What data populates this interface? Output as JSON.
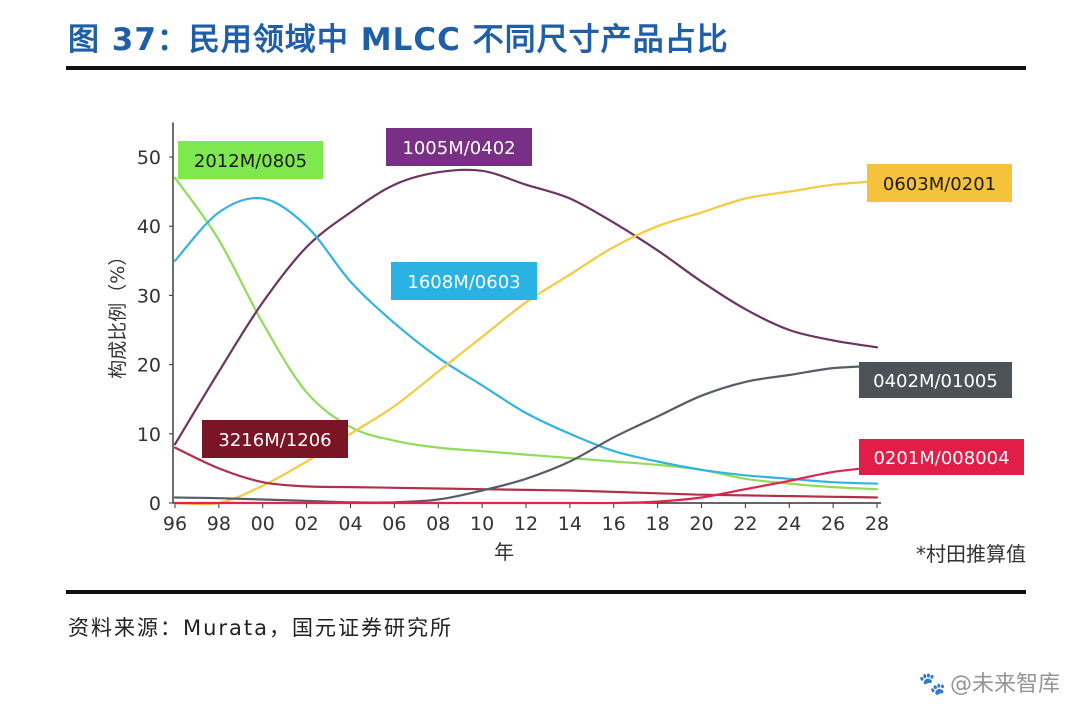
{
  "figure": {
    "title": "图 37：民用领域中 MLCC 不同尺寸产品占比",
    "source": "资料来源：Murata，国元证券研究所",
    "watermark": "@未来智库",
    "watermark_icon": "paw-icon"
  },
  "chart_data": {
    "type": "line",
    "title": "",
    "xlabel": "年",
    "ylabel": "构成比例（%）",
    "x_tick_labels": [
      "96",
      "98",
      "00",
      "02",
      "04",
      "06",
      "08",
      "10",
      "12",
      "14",
      "16",
      "18",
      "20",
      "22",
      "24",
      "26",
      "28"
    ],
    "x": [
      1996,
      1998,
      2000,
      2002,
      2004,
      2006,
      2008,
      2010,
      2012,
      2014,
      2016,
      2018,
      2020,
      2022,
      2024,
      2026,
      2028
    ],
    "xlim": [
      1996,
      2028
    ],
    "ylim": [
      0,
      55
    ],
    "yticks": [
      0,
      10,
      20,
      30,
      40,
      50
    ],
    "grid": false,
    "footnote": "*村田推算值",
    "series": [
      {
        "name": "2012M/0805",
        "color": "#8fdc5a",
        "label_color": "#7ee84e",
        "label_text_color": "#1a1a1a",
        "values": [
          47,
          38,
          26,
          16,
          11,
          9,
          8,
          7.5,
          7,
          6.5,
          6,
          5.5,
          4.8,
          3.5,
          2.8,
          2.3,
          2
        ]
      },
      {
        "name": "1005M/0402",
        "color": "#6b3461",
        "label_color": "#7a2f86",
        "label_text_color": "#ffffff",
        "values": [
          8.5,
          19,
          29,
          37,
          42,
          46,
          47.8,
          48,
          46,
          44,
          40.5,
          36.5,
          32,
          28,
          25,
          23.5,
          22.5
        ]
      },
      {
        "name": "1608M/0603",
        "color": "#35b3e0",
        "label_color": "#2ab2e3",
        "label_text_color": "#ffffff",
        "values": [
          35,
          42,
          44,
          40,
          32,
          26,
          21,
          17,
          13,
          10,
          7.5,
          6,
          4.8,
          4,
          3.5,
          3,
          2.8
        ]
      },
      {
        "name": "0603M/0201",
        "color": "#f5ca41",
        "label_color": "#f5c23b",
        "label_text_color": "#1a1a1a",
        "values": [
          0,
          0,
          2.5,
          6,
          10,
          14,
          19,
          24,
          29,
          33,
          37,
          40,
          42,
          44,
          45,
          46,
          46.5
        ]
      },
      {
        "name": "3216M/1206",
        "color": "#b0304a",
        "label_color": "#7a1526",
        "label_text_color": "#ffffff",
        "values": [
          8,
          5,
          3,
          2.4,
          2.3,
          2.2,
          2.1,
          2,
          1.9,
          1.8,
          1.6,
          1.4,
          1.2,
          1.1,
          1,
          0.9,
          0.8
        ]
      },
      {
        "name": "0402M/01005",
        "color": "#555d66",
        "label_color": "#4d5258",
        "label_text_color": "#ffffff",
        "values": [
          0.8,
          0.7,
          0.5,
          0.3,
          0.1,
          0.1,
          0.5,
          1.8,
          3.5,
          6,
          9.5,
          12.5,
          15.5,
          17.5,
          18.5,
          19.5,
          19.8
        ]
      },
      {
        "name": "0201M/008004",
        "color": "#e5234a",
        "label_color": "#e11d48",
        "label_text_color": "#ffffff",
        "values": [
          0,
          0,
          0,
          0,
          0,
          0,
          0,
          0,
          0,
          0,
          0,
          0.2,
          0.8,
          2,
          3.2,
          4.5,
          5.2
        ]
      }
    ]
  }
}
